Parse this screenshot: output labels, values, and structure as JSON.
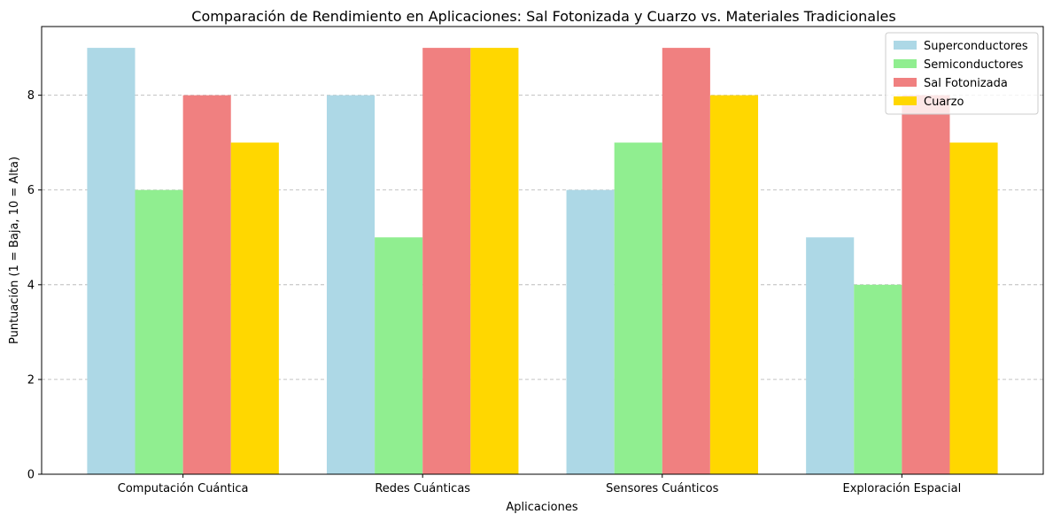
{
  "chart_data": {
    "type": "bar",
    "title": "Comparación de Rendimiento en Aplicaciones: Sal Fotonizada y Cuarzo vs. Materiales Tradicionales",
    "xlabel": "Aplicaciones",
    "ylabel": "Puntuación (1 = Baja, 10 = Alta)",
    "categories": [
      "Computación Cuántica",
      "Redes Cuánticas",
      "Sensores Cuánticos",
      "Exploración Espacial"
    ],
    "series": [
      {
        "name": "Superconductores",
        "values": [
          9,
          8,
          6,
          5
        ],
        "color": "#add8e6"
      },
      {
        "name": "Semiconductores",
        "values": [
          6,
          5,
          7,
          4
        ],
        "color": "#90ee90"
      },
      {
        "name": "Sal Fotonizada",
        "values": [
          8,
          9,
          9,
          8
        ],
        "color": "#f08080"
      },
      {
        "name": "Cuarzo",
        "values": [
          7,
          9,
          8,
          7
        ],
        "color": "#ffd700"
      }
    ],
    "ylim": [
      0,
      9.45
    ],
    "yticks": [
      0,
      2,
      4,
      6,
      8
    ],
    "grid": "y-dashed",
    "legend_position": "top-right"
  }
}
